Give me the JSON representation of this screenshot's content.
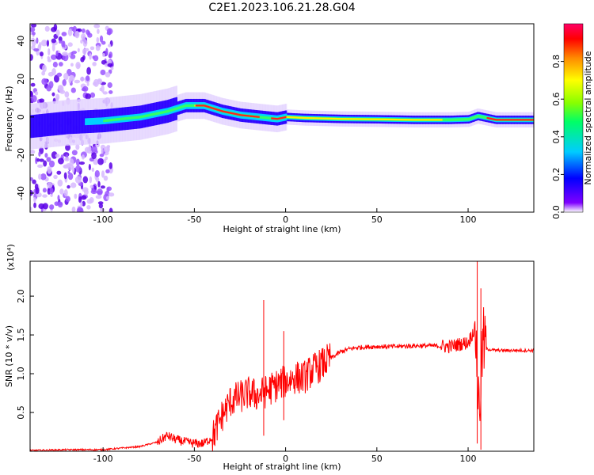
{
  "figure": {
    "title": "C2E1.2023.106.21.28.G04"
  },
  "chart_data": [
    {
      "type": "heatmap",
      "xlabel": "Height of straight line (km)",
      "ylabel": "Frequency (Hz)",
      "xlim": [
        -140,
        136
      ],
      "ylim": [
        -50,
        49
      ],
      "xticks": [
        -100,
        -50,
        0,
        50,
        100
      ],
      "yticks": [
        -40,
        -20,
        0,
        20,
        40
      ],
      "colorbar": {
        "label": "Normalized spectral amplitude",
        "range": [
          0,
          1
        ],
        "ticks": [
          "0.0",
          "0.2",
          "0.4",
          "0.6",
          "0.8"
        ],
        "colormap": [
          "#ffffff",
          "#7f00ff",
          "#0000ff",
          "#00ccff",
          "#00ff66",
          "#88ff00",
          "#ffff00",
          "#ff8800",
          "#ff0000",
          "#ff0066"
        ]
      },
      "ridge": {
        "x": [
          -140,
          -120,
          -100,
          -80,
          -65,
          -55,
          -45,
          -35,
          -25,
          -15,
          -5,
          0,
          10,
          30,
          50,
          70,
          90,
          100,
          105,
          115,
          136
        ],
        "freq": [
          -5,
          -3,
          -2,
          0,
          3,
          6,
          6,
          3,
          1,
          0,
          -1,
          0,
          -0.5,
          -1,
          -1.2,
          -1.5,
          -1.5,
          -1.2,
          0.5,
          -1.5,
          -1.5
        ]
      }
    },
    {
      "type": "line",
      "xlabel": "Height of straight line (km)",
      "ylabel": "SNR (10 * v/v)",
      "yscale_label": "(x10⁴)",
      "xlim": [
        -140,
        136
      ],
      "ylim": [
        0,
        2.45
      ],
      "xticks": [
        -100,
        -50,
        0,
        50,
        100
      ],
      "yticks": [
        0.5,
        1.0,
        1.5,
        2.0
      ],
      "color": "#ff0000",
      "series": [
        {
          "x": [
            -140,
            -120,
            -100,
            -80,
            -70,
            -65,
            -60,
            -55,
            -50,
            -45,
            -40,
            -35,
            -30,
            -25,
            -20,
            -15,
            -10,
            -5,
            0,
            5,
            10,
            15,
            20,
            25,
            30,
            35,
            40,
            50,
            60,
            70,
            80,
            90,
            95,
            100,
            104,
            106,
            108,
            110,
            115,
            120,
            136
          ],
          "values": [
            0.01,
            0.02,
            0.02,
            0.06,
            0.12,
            0.2,
            0.15,
            0.12,
            0.1,
            0.1,
            0.18,
            0.45,
            0.65,
            0.7,
            0.75,
            0.72,
            0.78,
            0.85,
            0.9,
            0.95,
            0.95,
            1.05,
            1.12,
            1.2,
            1.28,
            1.32,
            1.34,
            1.35,
            1.35,
            1.36,
            1.36,
            1.35,
            1.38,
            1.4,
            1.6,
            0.5,
            1.4,
            1.32,
            1.3,
            1.3,
            1.3
          ]
        }
      ],
      "spikes": [
        {
          "x": -12,
          "values": [
            0.2,
            1.95
          ]
        },
        {
          "x": -1,
          "values": [
            0.4,
            1.55
          ]
        },
        {
          "x": 105,
          "values": [
            0.1,
            2.45
          ]
        },
        {
          "x": 107,
          "values": [
            0.02,
            2.1
          ]
        }
      ]
    }
  ]
}
